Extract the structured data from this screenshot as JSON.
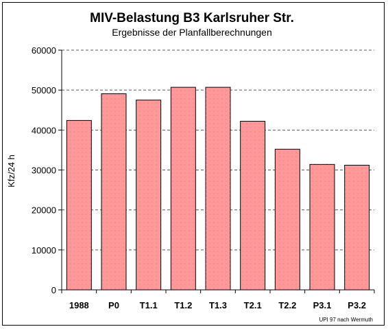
{
  "chart_data": {
    "type": "bar",
    "title": "MIV-Belastung B3 Karlsruher Str.",
    "subtitle": "Ergebnisse der Planfallberechnungen",
    "ylabel": "Kfz/24 h",
    "xlabel": "",
    "categories": [
      "1988",
      "P0",
      "T1.1",
      "T1.2",
      "T1.3",
      "T2.1",
      "T2.2",
      "P3.1",
      "P3.2"
    ],
    "values": [
      42400,
      49100,
      47500,
      50700,
      50700,
      42200,
      35200,
      31400,
      31200
    ],
    "ylim": [
      0,
      60000
    ],
    "yticks": [
      "0",
      "10000",
      "20000",
      "30000",
      "40000",
      "50000",
      "60000"
    ],
    "grid": true,
    "legend": "none",
    "bar_color": "#ff9999",
    "source_note": "UPI 97 nach Wermuth"
  }
}
